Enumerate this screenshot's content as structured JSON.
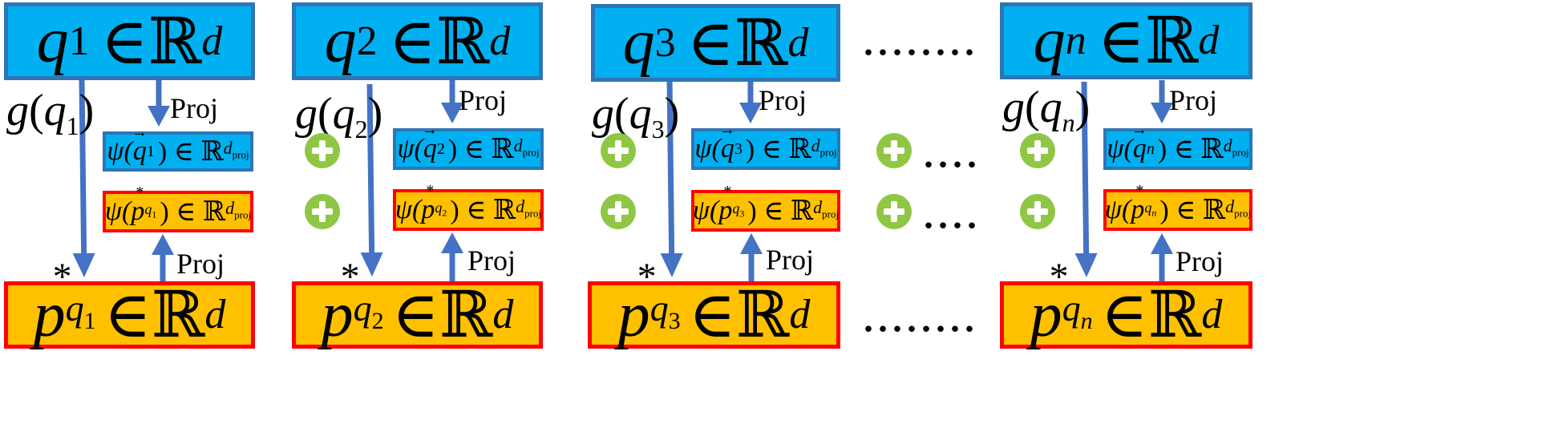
{
  "symbols": {
    "in": "∈",
    "R": "ℝ",
    "d": "d",
    "d_proj": "d",
    "proj_sub": "proj",
    "star": "*",
    "psi": "ψ",
    "g": "g",
    "vec": "⃗"
  },
  "labels": {
    "proj": "Proj"
  },
  "dots": {
    "long": "........",
    "short": "...."
  },
  "columns": [
    {
      "index": "1",
      "q": "q",
      "p": "p",
      "q_sub": "q"
    },
    {
      "index": "2",
      "q": "q",
      "p": "p",
      "q_sub": "q"
    },
    {
      "index": "3",
      "q": "q",
      "p": "p",
      "q_sub": "q"
    },
    {
      "index": "n",
      "q": "q",
      "p": "p",
      "q_sub": "q"
    }
  ],
  "colors": {
    "blue_fill": "#00b0f0",
    "blue_border": "#2e75b6",
    "orange_fill": "#ffc000",
    "red_border": "#ff0000",
    "arrow": "#4472c4",
    "plus": "#8fc744"
  }
}
